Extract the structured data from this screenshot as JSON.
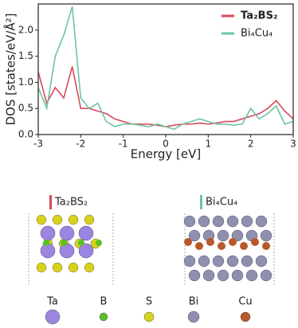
{
  "chart_data": {
    "type": "line",
    "xlabel": "Energy [eV]",
    "ylabel": "DOS [states/eV/Å²]",
    "x": [
      -3,
      -2.8,
      -2.6,
      -2.4,
      -2.2,
      -2,
      -1.8,
      -1.6,
      -1.4,
      -1.2,
      -1,
      -0.8,
      -0.6,
      -0.4,
      -0.2,
      0,
      0.2,
      0.4,
      0.6,
      0.8,
      1,
      1.2,
      1.4,
      1.6,
      1.8,
      2,
      2.2,
      2.4,
      2.6,
      2.8,
      3
    ],
    "series": [
      {
        "name": "Ta₂BS₂",
        "color": "#d9485b",
        "values": [
          1.2,
          0.6,
          0.9,
          0.7,
          1.3,
          0.5,
          0.5,
          0.45,
          0.4,
          0.3,
          0.25,
          0.2,
          0.2,
          0.2,
          0.18,
          0.15,
          0.18,
          0.2,
          0.2,
          0.22,
          0.2,
          0.22,
          0.25,
          0.25,
          0.3,
          0.35,
          0.4,
          0.5,
          0.65,
          0.45,
          0.3
        ]
      },
      {
        "name": "Bi₄Cu₄",
        "color": "#6cc4a4",
        "values": [
          0.9,
          0.5,
          1.5,
          1.9,
          2.45,
          0.7,
          0.5,
          0.6,
          0.25,
          0.15,
          0.2,
          0.2,
          0.18,
          0.15,
          0.2,
          0.15,
          0.1,
          0.2,
          0.25,
          0.3,
          0.25,
          0.2,
          0.2,
          0.18,
          0.2,
          0.5,
          0.3,
          0.4,
          0.55,
          0.2,
          0.25
        ]
      }
    ],
    "xlim": [
      -3,
      3
    ],
    "xticks": [
      -3,
      -2,
      -1,
      0,
      1,
      2,
      3
    ],
    "ylim": [
      0,
      2.5
    ],
    "yticks": [
      {
        "value": 0,
        "label": "0.0"
      },
      {
        "value": 0.5,
        "label": "0.5"
      },
      {
        "value": 1,
        "label": "1.0"
      },
      {
        "value": 1.5,
        "label": "1.5"
      },
      {
        "value": 2,
        "label": "2.0"
      }
    ],
    "legend": "upper right"
  },
  "structures": {
    "labels": [
      {
        "text": "Ta₂BS₂",
        "color": "#d9485b"
      },
      {
        "text": "Bi₄Cu₄",
        "color": "#6cc4a4"
      }
    ],
    "atoms": [
      {
        "name": "Ta",
        "color": "#9b85e0"
      },
      {
        "name": "B",
        "color": "#5bbf2a"
      },
      {
        "name": "S",
        "color": "#d8d21a"
      },
      {
        "name": "Bi",
        "color": "#8f8fae"
      },
      {
        "name": "Cu",
        "color": "#b9582a"
      }
    ]
  }
}
